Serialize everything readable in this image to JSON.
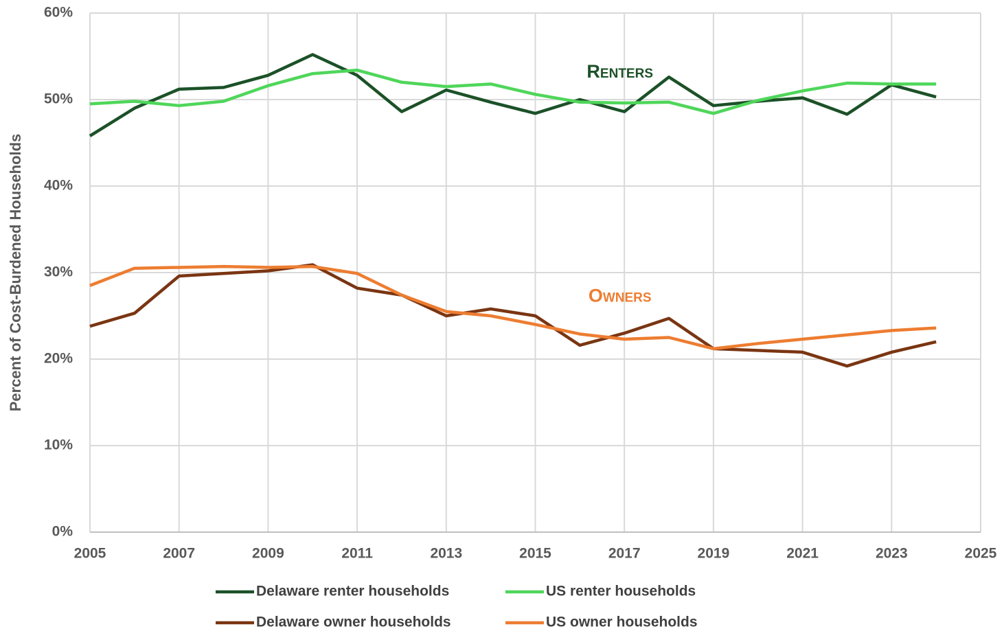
{
  "chart_data": {
    "type": "line",
    "y_label": "Percent of Cost-Burdened Households",
    "annotations": [
      "Renters",
      "Owners"
    ],
    "x": [
      2005,
      2006,
      2007,
      2008,
      2009,
      2010,
      2011,
      2012,
      2013,
      2014,
      2015,
      2016,
      2017,
      2018,
      2019,
      2020,
      2021,
      2022,
      2023,
      2024
    ],
    "series": [
      {
        "name": "Delaware renter households",
        "color": "#1c5128",
        "values": [
          45.8,
          49.0,
          51.2,
          51.4,
          52.8,
          55.2,
          52.8,
          48.6,
          51.1,
          49.7,
          48.4,
          50.0,
          48.6,
          52.6,
          49.3,
          49.8,
          50.2,
          48.3,
          51.7,
          50.3
        ]
      },
      {
        "name": "US renter households",
        "color": "#4fd65a",
        "values": [
          49.5,
          49.8,
          49.3,
          49.8,
          51.6,
          53.0,
          53.4,
          52.0,
          51.5,
          51.8,
          50.6,
          49.7,
          49.6,
          49.7,
          48.4,
          49.9,
          51.0,
          51.9,
          51.8,
          51.8
        ]
      },
      {
        "name": "Delaware owner households",
        "color": "#7a3512",
        "values": [
          23.8,
          25.3,
          29.6,
          29.9,
          30.2,
          30.9,
          28.2,
          27.4,
          25.0,
          25.8,
          25.0,
          21.6,
          23.0,
          24.7,
          21.2,
          21.0,
          20.8,
          19.2,
          20.8,
          22.0
        ]
      },
      {
        "name": "US owner households",
        "color": "#ed7d31",
        "values": [
          28.5,
          30.5,
          30.6,
          30.7,
          30.6,
          30.7,
          29.9,
          27.4,
          25.5,
          25.0,
          24.0,
          22.9,
          22.3,
          22.5,
          21.2,
          21.8,
          22.3,
          22.8,
          23.3,
          23.6
        ]
      }
    ],
    "xlim": [
      2005,
      2025
    ],
    "xticks": [
      2005,
      2007,
      2009,
      2011,
      2013,
      2015,
      2017,
      2019,
      2021,
      2023,
      2025
    ],
    "ylim": [
      0,
      60
    ],
    "yticks": [
      {
        "value": 0,
        "label": "0%"
      },
      {
        "value": 10,
        "label": "10%"
      },
      {
        "value": 20,
        "label": "20%"
      },
      {
        "value": 30,
        "label": "30%"
      },
      {
        "value": 40,
        "label": "40%"
      },
      {
        "value": 50,
        "label": "50%"
      },
      {
        "value": 60,
        "label": "60%"
      }
    ],
    "grid": true,
    "legend_position": "bottom"
  }
}
